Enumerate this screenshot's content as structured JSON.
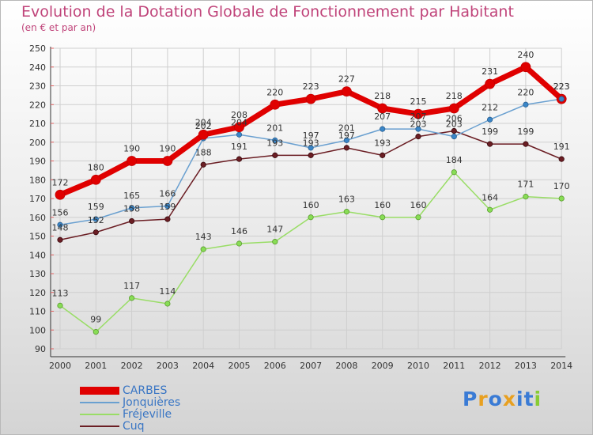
{
  "chart_data": {
    "type": "line",
    "title": "Evolution de la Dotation Globale de Fonctionnement par Habitant",
    "subtitle": "(en € et par an)",
    "xlabel": "",
    "ylabel": "",
    "ylim": [
      90,
      250
    ],
    "yticks": [
      90,
      100,
      110,
      120,
      130,
      140,
      150,
      160,
      170,
      180,
      190,
      200,
      210,
      220,
      230,
      240,
      250
    ],
    "grid": true,
    "legend_position": "bottom-left",
    "categories": [
      "2000",
      "2001",
      "2002",
      "2003",
      "2004",
      "2005",
      "2006",
      "2007",
      "2008",
      "2009",
      "2010",
      "2011",
      "2012",
      "2013",
      "2014"
    ],
    "series": [
      {
        "name": "CARBES",
        "color": "#e00000",
        "values": [
          172,
          180,
          190,
          190,
          204,
          208,
          220,
          223,
          227,
          218,
          215,
          218,
          231,
          240,
          223
        ]
      },
      {
        "name": "Jonquières",
        "color": "#6aa0d0",
        "values": [
          156,
          159,
          165,
          166,
          202,
          204,
          201,
          197,
          201,
          207,
          207,
          203,
          212,
          220,
          223
        ]
      },
      {
        "name": "Fréjeville",
        "color": "#99dd66",
        "values": [
          113,
          99,
          117,
          114,
          143,
          146,
          147,
          160,
          163,
          160,
          160,
          184,
          164,
          171,
          170
        ]
      },
      {
        "name": "Cuq",
        "color": "#6b1e24",
        "values": [
          148,
          152,
          158,
          159,
          188,
          191,
          193,
          193,
          197,
          193,
          203,
          206,
          199,
          199,
          191
        ]
      }
    ]
  },
  "logo": {
    "letters": [
      "P",
      "r",
      "o",
      "x",
      "i",
      "t",
      "i"
    ],
    "colors": [
      "#3a7bd5",
      "#e8a020",
      "#3a7bd5",
      "#e8a020",
      "#3a7bd5",
      "#3a7bd5",
      "#88cc33"
    ]
  }
}
